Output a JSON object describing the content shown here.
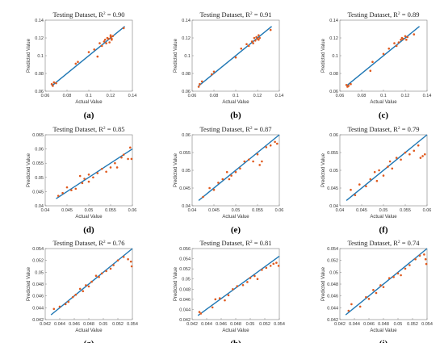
{
  "colors": {
    "fit_line": "#1f77b4",
    "points": "#e05a1e",
    "frame": "#7f7f7f"
  },
  "chart_data": [
    {
      "type": "scatter",
      "caption": "(a)",
      "title": "Testing Dataset, R",
      "r2": "0.90",
      "xlabel": "Actual Value",
      "ylabel": "Predicted Value",
      "xlim": [
        0.06,
        0.14
      ],
      "ylim": [
        0.06,
        0.14
      ],
      "xticks": [
        "0.06",
        "0.08",
        "0.1",
        "0.12",
        "0.14"
      ],
      "yticks": [
        "0.06",
        "0.08",
        "0.1",
        "0.12",
        "0.14"
      ],
      "fit": [
        [
          0.066,
          0.066
        ],
        [
          0.133,
          0.133
        ]
      ],
      "points": [
        [
          0.066,
          0.068
        ],
        [
          0.067,
          0.066
        ],
        [
          0.068,
          0.07
        ],
        [
          0.07,
          0.069
        ],
        [
          0.088,
          0.091
        ],
        [
          0.09,
          0.093
        ],
        [
          0.1,
          0.104
        ],
        [
          0.105,
          0.107
        ],
        [
          0.108,
          0.099
        ],
        [
          0.11,
          0.114
        ],
        [
          0.112,
          0.111
        ],
        [
          0.114,
          0.116
        ],
        [
          0.115,
          0.118
        ],
        [
          0.116,
          0.114
        ],
        [
          0.117,
          0.12
        ],
        [
          0.118,
          0.119
        ],
        [
          0.119,
          0.115
        ],
        [
          0.12,
          0.121
        ],
        [
          0.12,
          0.123
        ],
        [
          0.121,
          0.119
        ],
        [
          0.121,
          0.118
        ],
        [
          0.122,
          0.122
        ],
        [
          0.132,
          0.131
        ]
      ]
    },
    {
      "type": "scatter",
      "caption": "(b)",
      "title": "Testing Dataset, R",
      "r2": "0.91",
      "xlabel": "Actual Value",
      "ylabel": "Predicted Value",
      "xlim": [
        0.06,
        0.14
      ],
      "ylim": [
        0.06,
        0.14
      ],
      "xticks": [
        "0.06",
        "0.08",
        "0.1",
        "0.12",
        "0.14"
      ],
      "yticks": [
        "0.06",
        "0.08",
        "0.1",
        "0.12",
        "0.14"
      ],
      "fit": [
        [
          0.066,
          0.066
        ],
        [
          0.133,
          0.133
        ]
      ],
      "points": [
        [
          0.066,
          0.065
        ],
        [
          0.067,
          0.068
        ],
        [
          0.069,
          0.071
        ],
        [
          0.078,
          0.079
        ],
        [
          0.08,
          0.082
        ],
        [
          0.1,
          0.098
        ],
        [
          0.105,
          0.108
        ],
        [
          0.11,
          0.113
        ],
        [
          0.112,
          0.111
        ],
        [
          0.115,
          0.116
        ],
        [
          0.116,
          0.114
        ],
        [
          0.117,
          0.12
        ],
        [
          0.118,
          0.117
        ],
        [
          0.119,
          0.121
        ],
        [
          0.12,
          0.119
        ],
        [
          0.121,
          0.118
        ],
        [
          0.121,
          0.123
        ],
        [
          0.122,
          0.12
        ],
        [
          0.132,
          0.129
        ]
      ]
    },
    {
      "type": "scatter",
      "caption": "(c)",
      "title": "Testing Dataset, R",
      "r2": "0.89",
      "xlabel": "Actual Value",
      "ylabel": "Predicted Value",
      "xlim": [
        0.06,
        0.14
      ],
      "ylim": [
        0.06,
        0.14
      ],
      "xticks": [
        "0.06",
        "0.08",
        "0.1",
        "0.12",
        "0.14"
      ],
      "yticks": [
        "0.06",
        "0.08",
        "0.1",
        "0.12",
        "0.14"
      ],
      "fit": [
        [
          0.066,
          0.066
        ],
        [
          0.133,
          0.133
        ]
      ],
      "points": [
        [
          0.066,
          0.067
        ],
        [
          0.067,
          0.065
        ],
        [
          0.068,
          0.066
        ],
        [
          0.07,
          0.068
        ],
        [
          0.088,
          0.083
        ],
        [
          0.09,
          0.093
        ],
        [
          0.1,
          0.102
        ],
        [
          0.105,
          0.108
        ],
        [
          0.11,
          0.114
        ],
        [
          0.112,
          0.111
        ],
        [
          0.114,
          0.115
        ],
        [
          0.116,
          0.118
        ],
        [
          0.117,
          0.12
        ],
        [
          0.118,
          0.119
        ],
        [
          0.12,
          0.122
        ],
        [
          0.121,
          0.118
        ],
        [
          0.122,
          0.121
        ],
        [
          0.128,
          0.124
        ]
      ]
    },
    {
      "type": "scatter",
      "caption": "(d)",
      "title": "Testing Dataset, R",
      "r2": "0.85",
      "xlabel": "Actual Value",
      "ylabel": "Predicted Value",
      "xlim": [
        0.04,
        0.06
      ],
      "ylim": [
        0.04,
        0.065
      ],
      "xticks": [
        "0.04",
        "0.045",
        "0.05",
        "0.055",
        "0.06"
      ],
      "yticks": [
        "0.04",
        "0.045",
        "0.05",
        "0.055",
        "0.06",
        "0.065"
      ],
      "fit": [
        [
          0.0425,
          0.0425
        ],
        [
          0.06,
          0.06
        ]
      ],
      "points": [
        [
          0.043,
          0.0435
        ],
        [
          0.044,
          0.0445
        ],
        [
          0.045,
          0.0465
        ],
        [
          0.046,
          0.0455
        ],
        [
          0.047,
          0.046
        ],
        [
          0.048,
          0.0505
        ],
        [
          0.0485,
          0.048
        ],
        [
          0.049,
          0.0495
        ],
        [
          0.05,
          0.0485
        ],
        [
          0.05,
          0.051
        ],
        [
          0.051,
          0.05
        ],
        [
          0.052,
          0.0515
        ],
        [
          0.053,
          0.053
        ],
        [
          0.054,
          0.052
        ],
        [
          0.055,
          0.0535
        ],
        [
          0.056,
          0.055
        ],
        [
          0.0565,
          0.0535
        ],
        [
          0.0575,
          0.057
        ],
        [
          0.058,
          0.058
        ],
        [
          0.059,
          0.0565
        ],
        [
          0.0595,
          0.0605
        ],
        [
          0.0598,
          0.0565
        ]
      ]
    },
    {
      "type": "scatter",
      "caption": "(e)",
      "title": "Testing Dataset, R",
      "r2": "0.87",
      "xlabel": "Actual Value",
      "ylabel": "Predicted Value",
      "xlim": [
        0.04,
        0.06
      ],
      "ylim": [
        0.04,
        0.06
      ],
      "xticks": [
        "0.04",
        "0.045",
        "0.05",
        "0.055",
        "0.06"
      ],
      "yticks": [
        "0.04",
        "0.045",
        "0.05",
        "0.055",
        "0.06"
      ],
      "fit": [
        [
          0.0415,
          0.0415
        ],
        [
          0.06,
          0.06
        ]
      ],
      "points": [
        [
          0.0425,
          0.0425
        ],
        [
          0.044,
          0.045
        ],
        [
          0.045,
          0.0445
        ],
        [
          0.046,
          0.0465
        ],
        [
          0.047,
          0.0475
        ],
        [
          0.048,
          0.0495
        ],
        [
          0.0485,
          0.0475
        ],
        [
          0.049,
          0.0485
        ],
        [
          0.05,
          0.0495
        ],
        [
          0.051,
          0.0505
        ],
        [
          0.052,
          0.0525
        ],
        [
          0.053,
          0.053
        ],
        [
          0.054,
          0.0525
        ],
        [
          0.055,
          0.0545
        ],
        [
          0.0555,
          0.0515
        ],
        [
          0.056,
          0.0525
        ],
        [
          0.057,
          0.0565
        ],
        [
          0.058,
          0.057
        ],
        [
          0.059,
          0.058
        ],
        [
          0.0595,
          0.0575
        ]
      ]
    },
    {
      "type": "scatter",
      "caption": "(f)",
      "title": "Testing Dataset, R",
      "r2": "0.79",
      "xlabel": "Actual Value",
      "ylabel": "Predicted Value",
      "xlim": [
        0.04,
        0.06
      ],
      "ylim": [
        0.04,
        0.06
      ],
      "xticks": [
        "0.04",
        "0.045",
        "0.05",
        "0.055",
        "0.06"
      ],
      "yticks": [
        "0.04",
        "0.045",
        "0.05",
        "0.055",
        "0.06"
      ],
      "fit": [
        [
          0.0415,
          0.0415
        ],
        [
          0.06,
          0.06
        ]
      ],
      "points": [
        [
          0.0425,
          0.0445
        ],
        [
          0.0435,
          0.043
        ],
        [
          0.0445,
          0.046
        ],
        [
          0.046,
          0.0455
        ],
        [
          0.047,
          0.0475
        ],
        [
          0.048,
          0.0495
        ],
        [
          0.0485,
          0.047
        ],
        [
          0.049,
          0.05
        ],
        [
          0.05,
          0.0485
        ],
        [
          0.051,
          0.051
        ],
        [
          0.0515,
          0.0525
        ],
        [
          0.052,
          0.0505
        ],
        [
          0.053,
          0.0535
        ],
        [
          0.054,
          0.053
        ],
        [
          0.055,
          0.055
        ],
        [
          0.056,
          0.0545
        ],
        [
          0.057,
          0.0555
        ],
        [
          0.058,
          0.057
        ],
        [
          0.0585,
          0.0535
        ],
        [
          0.059,
          0.054
        ],
        [
          0.0595,
          0.0545
        ]
      ]
    },
    {
      "type": "scatter",
      "caption": "(g)",
      "title": "Testing Dataset, R",
      "r2": "0.76",
      "xlabel": "Actual Value",
      "ylabel": "Predicted Value",
      "xlim": [
        0.042,
        0.054
      ],
      "ylim": [
        0.042,
        0.054
      ],
      "xticks": [
        "0.042",
        "0.044",
        "0.046",
        "0.048",
        "0.05",
        "0.052",
        "0.054"
      ],
      "yticks": [
        "0.042",
        "0.044",
        "0.046",
        "0.048",
        "0.05",
        "0.052",
        "0.054"
      ],
      "fit": [
        [
          0.0428,
          0.0428
        ],
        [
          0.054,
          0.054
        ]
      ],
      "points": [
        [
          0.0432,
          0.0438
        ],
        [
          0.044,
          0.0442
        ],
        [
          0.0448,
          0.0446
        ],
        [
          0.0452,
          0.045
        ],
        [
          0.0458,
          0.0458
        ],
        [
          0.0462,
          0.0462
        ],
        [
          0.0468,
          0.0472
        ],
        [
          0.0472,
          0.0468
        ],
        [
          0.0476,
          0.0478
        ],
        [
          0.048,
          0.0476
        ],
        [
          0.0484,
          0.0484
        ],
        [
          0.049,
          0.0494
        ],
        [
          0.0494,
          0.0492
        ],
        [
          0.0498,
          0.0498
        ],
        [
          0.0504,
          0.0502
        ],
        [
          0.051,
          0.0506
        ],
        [
          0.0514,
          0.0512
        ],
        [
          0.052,
          0.052
        ],
        [
          0.0528,
          0.0526
        ],
        [
          0.0534,
          0.0522
        ],
        [
          0.0538,
          0.0518
        ],
        [
          0.0539,
          0.051
        ]
      ]
    },
    {
      "type": "scatter",
      "caption": "(h)",
      "title": "Testing Dataset, R",
      "r2": "0.81",
      "xlabel": "Actual Value",
      "ylabel": "Predicted Value",
      "xlim": [
        0.042,
        0.054
      ],
      "ylim": [
        0.042,
        0.056
      ],
      "xticks": [
        "0.042",
        "0.044",
        "0.046",
        "0.048",
        "0.05",
        "0.052",
        "0.054"
      ],
      "yticks": [
        "0.042",
        "0.044",
        "0.046",
        "0.048",
        "0.05",
        "0.052",
        "0.054",
        "0.056"
      ],
      "fit": [
        [
          0.0428,
          0.0428
        ],
        [
          0.054,
          0.0545
        ]
      ],
      "points": [
        [
          0.043,
          0.0435
        ],
        [
          0.0432,
          0.0432
        ],
        [
          0.0448,
          0.0444
        ],
        [
          0.0452,
          0.046
        ],
        [
          0.0458,
          0.0462
        ],
        [
          0.0465,
          0.0458
        ],
        [
          0.047,
          0.0468
        ],
        [
          0.0476,
          0.048
        ],
        [
          0.0482,
          0.0486
        ],
        [
          0.049,
          0.0488
        ],
        [
          0.0496,
          0.0494
        ],
        [
          0.05,
          0.0502
        ],
        [
          0.0506,
          0.0506
        ],
        [
          0.051,
          0.05
        ],
        [
          0.0516,
          0.0518
        ],
        [
          0.0522,
          0.0522
        ],
        [
          0.0528,
          0.0526
        ],
        [
          0.0532,
          0.053
        ],
        [
          0.0536,
          0.0532
        ],
        [
          0.0539,
          0.0526
        ]
      ]
    },
    {
      "type": "scatter",
      "caption": "(i)",
      "title": "Testing Dataset, R",
      "r2": "0.74",
      "xlabel": "Actual Value",
      "ylabel": "Predicted Value",
      "xlim": [
        0.042,
        0.054
      ],
      "ylim": [
        0.042,
        0.054
      ],
      "xticks": [
        "0.042",
        "0.044",
        "0.046",
        "0.048",
        "0.05",
        "0.052",
        "0.054"
      ],
      "yticks": [
        "0.042",
        "0.044",
        "0.046",
        "0.048",
        "0.05",
        "0.052",
        "0.054"
      ],
      "fit": [
        [
          0.0428,
          0.0428
        ],
        [
          0.054,
          0.054
        ]
      ],
      "points": [
        [
          0.0432,
          0.0435
        ],
        [
          0.0436,
          0.0446
        ],
        [
          0.0448,
          0.0442
        ],
        [
          0.0456,
          0.0458
        ],
        [
          0.046,
          0.0455
        ],
        [
          0.0466,
          0.047
        ],
        [
          0.047,
          0.0465
        ],
        [
          0.0476,
          0.0478
        ],
        [
          0.048,
          0.0475
        ],
        [
          0.0488,
          0.049
        ],
        [
          0.0494,
          0.0492
        ],
        [
          0.05,
          0.0498
        ],
        [
          0.0504,
          0.0495
        ],
        [
          0.051,
          0.0506
        ],
        [
          0.0516,
          0.0512
        ],
        [
          0.0524,
          0.0522
        ],
        [
          0.053,
          0.0528
        ],
        [
          0.0536,
          0.053
        ],
        [
          0.0538,
          0.0522
        ],
        [
          0.0539,
          0.0514
        ]
      ]
    }
  ]
}
